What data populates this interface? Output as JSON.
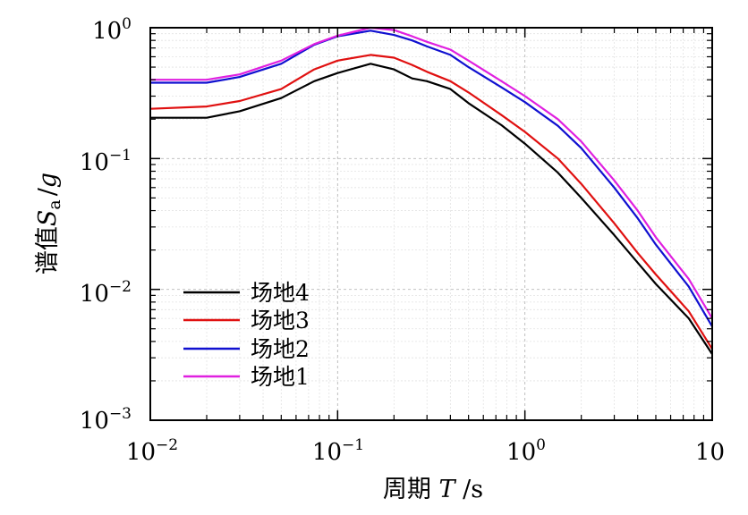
{
  "chart_data": {
    "type": "line",
    "x_scale": "log",
    "y_scale": "log",
    "xlim": [
      0.01,
      10
    ],
    "ylim": [
      0.001,
      1
    ],
    "grid": true,
    "legend_position": "bottom-left",
    "xlabel": {
      "prefix": "周期",
      "symbol": "T",
      "unit": "/s"
    },
    "ylabel": {
      "prefix": "谱值",
      "symbol": "S",
      "subscript": "a",
      "divider": "/",
      "denominator": "g"
    },
    "x_ticks": [
      {
        "base": "10",
        "exp": "−2"
      },
      {
        "base": "10",
        "exp": "−1"
      },
      {
        "base": "10",
        "exp": "0"
      },
      {
        "base": "10",
        "exp": ""
      }
    ],
    "y_ticks": [
      {
        "base": "10",
        "exp": "0"
      },
      {
        "base": "10",
        "exp": "−1"
      },
      {
        "base": "10",
        "exp": "−2"
      },
      {
        "base": "10",
        "exp": "−3"
      }
    ],
    "series": [
      {
        "name": "场地4",
        "color": "#000000",
        "points": [
          [
            0.01,
            0.205
          ],
          [
            0.02,
            0.205
          ],
          [
            0.03,
            0.23
          ],
          [
            0.05,
            0.29
          ],
          [
            0.075,
            0.39
          ],
          [
            0.1,
            0.45
          ],
          [
            0.15,
            0.53
          ],
          [
            0.2,
            0.48
          ],
          [
            0.25,
            0.41
          ],
          [
            0.3,
            0.39
          ],
          [
            0.4,
            0.34
          ],
          [
            0.5,
            0.265
          ],
          [
            0.75,
            0.18
          ],
          [
            1.0,
            0.13
          ],
          [
            1.5,
            0.078
          ],
          [
            2.0,
            0.05
          ],
          [
            3.0,
            0.026
          ],
          [
            4.0,
            0.016
          ],
          [
            5.0,
            0.011
          ],
          [
            7.5,
            0.006
          ],
          [
            10,
            0.0032
          ]
        ]
      },
      {
        "name": "场地3",
        "color": "#e01010",
        "points": [
          [
            0.01,
            0.24
          ],
          [
            0.02,
            0.25
          ],
          [
            0.03,
            0.275
          ],
          [
            0.05,
            0.34
          ],
          [
            0.075,
            0.48
          ],
          [
            0.1,
            0.56
          ],
          [
            0.15,
            0.62
          ],
          [
            0.2,
            0.59
          ],
          [
            0.25,
            0.52
          ],
          [
            0.3,
            0.46
          ],
          [
            0.4,
            0.39
          ],
          [
            0.5,
            0.32
          ],
          [
            0.75,
            0.215
          ],
          [
            1.0,
            0.16
          ],
          [
            1.5,
            0.1
          ],
          [
            2.0,
            0.064
          ],
          [
            3.0,
            0.032
          ],
          [
            4.0,
            0.019
          ],
          [
            5.0,
            0.013
          ],
          [
            7.5,
            0.0068
          ],
          [
            10,
            0.0035
          ]
        ]
      },
      {
        "name": "场地2",
        "color": "#1010d0",
        "points": [
          [
            0.01,
            0.38
          ],
          [
            0.02,
            0.38
          ],
          [
            0.03,
            0.42
          ],
          [
            0.05,
            0.53
          ],
          [
            0.075,
            0.74
          ],
          [
            0.1,
            0.86
          ],
          [
            0.15,
            0.95
          ],
          [
            0.2,
            0.88
          ],
          [
            0.25,
            0.8
          ],
          [
            0.3,
            0.72
          ],
          [
            0.4,
            0.62
          ],
          [
            0.5,
            0.5
          ],
          [
            0.75,
            0.35
          ],
          [
            1.0,
            0.27
          ],
          [
            1.5,
            0.178
          ],
          [
            2.0,
            0.12
          ],
          [
            3.0,
            0.06
          ],
          [
            4.0,
            0.035
          ],
          [
            5.0,
            0.022
          ],
          [
            7.5,
            0.0105
          ],
          [
            10,
            0.0052
          ]
        ]
      },
      {
        "name": "场地1",
        "color": "#e020e0",
        "points": [
          [
            0.01,
            0.4
          ],
          [
            0.02,
            0.4
          ],
          [
            0.03,
            0.44
          ],
          [
            0.05,
            0.56
          ],
          [
            0.075,
            0.75
          ],
          [
            0.1,
            0.87
          ],
          [
            0.15,
            1.0
          ],
          [
            0.2,
            0.96
          ],
          [
            0.25,
            0.86
          ],
          [
            0.3,
            0.78
          ],
          [
            0.4,
            0.68
          ],
          [
            0.5,
            0.56
          ],
          [
            0.75,
            0.39
          ],
          [
            1.0,
            0.3
          ],
          [
            1.5,
            0.2
          ],
          [
            2.0,
            0.135
          ],
          [
            3.0,
            0.068
          ],
          [
            4.0,
            0.04
          ],
          [
            5.0,
            0.025
          ],
          [
            7.5,
            0.012
          ],
          [
            10,
            0.006
          ]
        ]
      }
    ],
    "legend_order": [
      0,
      1,
      2,
      3
    ]
  }
}
